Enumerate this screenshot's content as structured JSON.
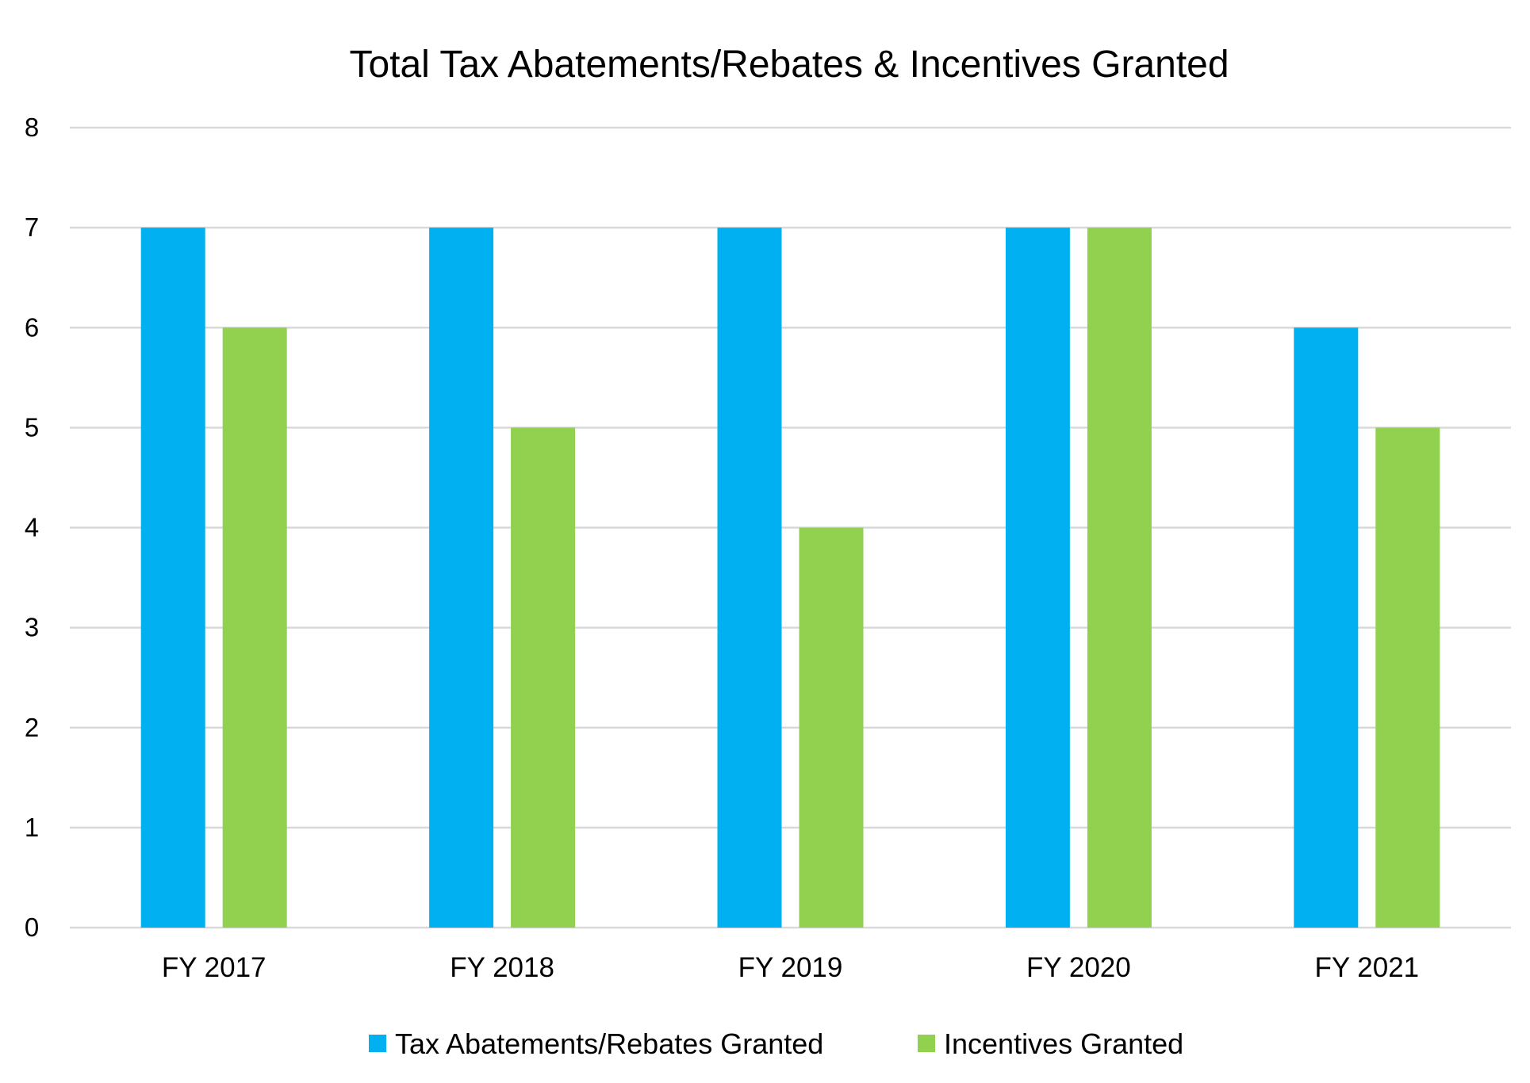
{
  "chart_data": {
    "type": "bar",
    "title": "Total Tax Abatements/Rebates & Incentives Granted",
    "xlabel": "",
    "ylabel": "",
    "categories": [
      "FY 2017",
      "FY 2018",
      "FY 2019",
      "FY 2020",
      "FY 2021"
    ],
    "series": [
      {
        "name": "Tax Abatements/Rebates Granted",
        "color": "#00b0f0",
        "values": [
          7,
          7,
          7,
          7,
          6
        ]
      },
      {
        "name": "Incentives Granted",
        "color": "#92d050",
        "values": [
          6,
          5,
          4,
          7,
          5
        ]
      }
    ],
    "ylim": [
      0,
      8
    ],
    "yticks": [
      "0",
      "1",
      "2",
      "3",
      "4",
      "5",
      "6",
      "7",
      "8"
    ],
    "grid": true,
    "legend_position": "bottom"
  }
}
